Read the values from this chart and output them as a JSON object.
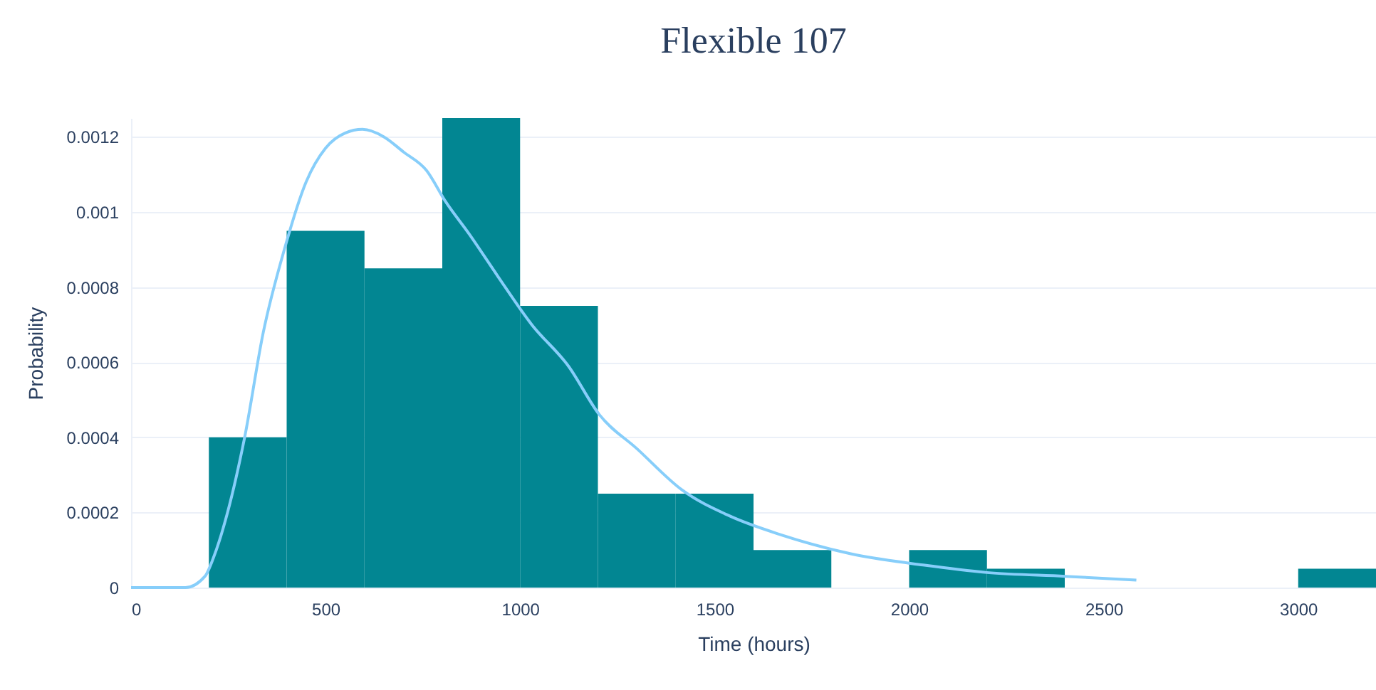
{
  "chart_data": {
    "type": "histogram",
    "title": "Flexible 107",
    "xlabel": "Time (hours)",
    "ylabel": "Probability",
    "bins": [
      200,
      400,
      600,
      800,
      1000,
      1200,
      1400,
      1600,
      1800,
      2000,
      2200,
      2400,
      2600,
      2800,
      3000,
      3200
    ],
    "values": [
      0.0004,
      0.00095,
      0.00085,
      0.00125,
      0.00075,
      0.00025,
      0.00025,
      0.0001,
      0,
      0.0001,
      5e-05,
      0,
      0,
      0,
      5e-05
    ],
    "color": "#028692",
    "series": [
      {
        "type": "line",
        "color": "#87cefa",
        "x": [
          0,
          140,
          190,
          212,
          248,
          292,
          340,
          394,
          450,
          500,
          550,
          595,
          650,
          700,
          760,
          807,
          870,
          942,
          1030,
          1124,
          1204,
          1300,
          1416,
          1540,
          1672,
          1850,
          2036,
          2200,
          2401,
          2584
        ],
        "values": [
          0,
          0,
          3e-05,
          8e-05,
          0.0002,
          0.0004,
          0.00068,
          0.0009,
          0.00108,
          0.00117,
          0.00121,
          0.00122,
          0.0012,
          0.00116,
          0.00111,
          0.00103,
          0.00094,
          0.00083,
          0.0007,
          0.00059,
          0.00046,
          0.00037,
          0.00026,
          0.00019,
          0.00014,
          9e-05,
          6e-05,
          4e-05,
          3e-05,
          2e-05
        ]
      }
    ],
    "xlim": [
      0,
      3200
    ],
    "xticks": [
      0,
      500,
      1000,
      1500,
      2000,
      2500,
      3000
    ],
    "ylim": [
      0,
      0.00125
    ],
    "yticks": [
      0,
      0.0002,
      0.0004,
      0.0006,
      0.0008,
      0.001,
      0.0012
    ],
    "grid": "y"
  }
}
